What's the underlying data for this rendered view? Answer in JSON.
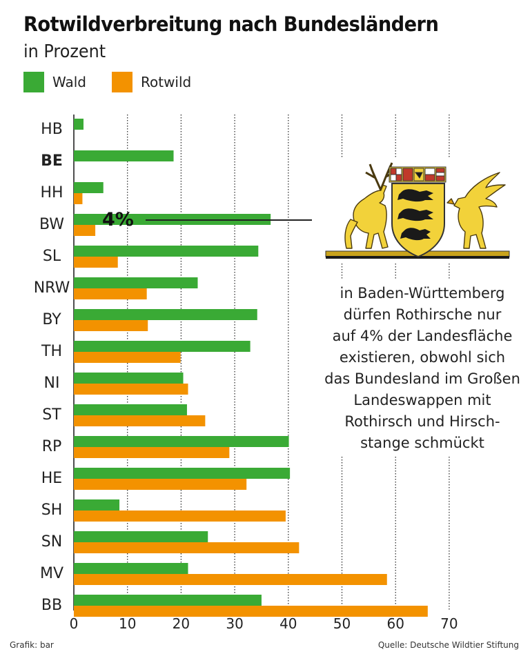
{
  "title": "Rotwildverbreitung nach Bundesländern",
  "subtitle": "in Prozent",
  "colors": {
    "wald": "#3aaa35",
    "rotwild": "#f39200",
    "grid": "#222222",
    "text": "#222222"
  },
  "chart_data": {
    "type": "bar",
    "orientation": "horizontal",
    "title": "Rotwildverbreitung nach Bundesländern",
    "subtitle": "in Prozent",
    "categories": [
      "HB",
      "BE",
      "HH",
      "BW",
      "SL",
      "NRW",
      "BY",
      "TH",
      "NI",
      "ST",
      "RP",
      "HE",
      "SH",
      "SN",
      "MV",
      "BB"
    ],
    "bold_categories": [
      "BE"
    ],
    "series": [
      {
        "name": "Wald",
        "values": [
          1.8,
          18.6,
          5.5,
          36.7,
          34.4,
          23.1,
          34.2,
          32.9,
          20.4,
          21.1,
          40.1,
          40.3,
          8.5,
          25.0,
          21.3,
          35.0
        ]
      },
      {
        "name": "Rotwild",
        "values": [
          null,
          null,
          1.6,
          4.0,
          8.2,
          13.6,
          13.8,
          19.9,
          21.3,
          24.5,
          29.0,
          32.2,
          39.5,
          42.0,
          58.4,
          66.0
        ]
      }
    ],
    "x_ticks": [
      0,
      10,
      20,
      30,
      40,
      50,
      60,
      70
    ],
    "xlim": [
      0,
      70
    ],
    "xlabel": "",
    "ylabel": "",
    "grid": "vertical dotted",
    "legend": "top-left",
    "annotation": {
      "text": "4%",
      "category": "BW",
      "series": "Rotwild"
    }
  },
  "callout": {
    "lines": [
      "in Baden-Württemberg",
      "dürfen Rothirsche nur",
      "auf 4% der Landesfläche",
      "existieren, obwohl sich",
      "das Bundesland im Großen",
      "Landeswappen mit",
      "Rothirsch und Hirsch-",
      "stange schmückt"
    ]
  },
  "footer": {
    "left": "Grafik: bar",
    "right": "Quelle: Deutsche Wildtier Stiftung"
  }
}
